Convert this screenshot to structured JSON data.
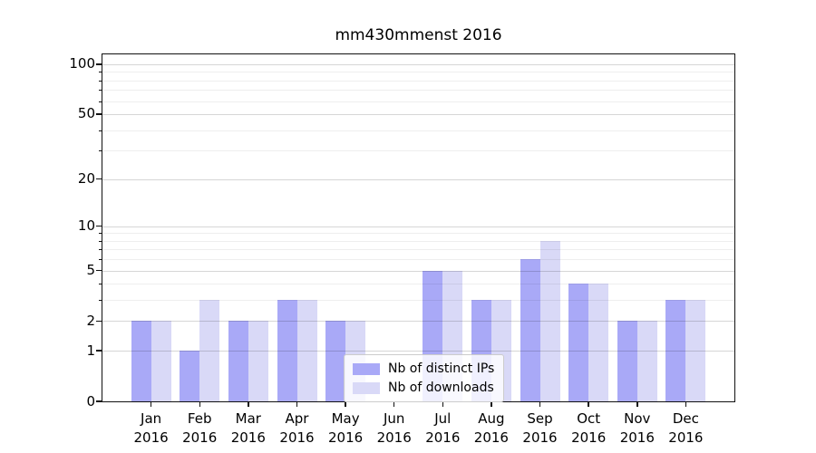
{
  "chart_data": {
    "type": "bar",
    "title": "mm430mmenst 2016",
    "categories": [
      "Jan 2016",
      "Feb 2016",
      "Mar 2016",
      "Apr 2016",
      "May 2016",
      "Jun 2016",
      "Jul 2016",
      "Aug 2016",
      "Sep 2016",
      "Oct 2016",
      "Nov 2016",
      "Dec 2016"
    ],
    "series": [
      {
        "name": "Nb of distinct IPs",
        "color": "#a9a9f7",
        "values": [
          2,
          1,
          2,
          3,
          2,
          0,
          5,
          3,
          6,
          4,
          2,
          3
        ]
      },
      {
        "name": "Nb of downloads",
        "color": "#d9d9f7",
        "values": [
          2,
          3,
          2,
          3,
          2,
          0,
          5,
          3,
          8,
          4,
          2,
          3
        ]
      }
    ],
    "y_axis": {
      "scale": "log10(v+1)",
      "ticks": [
        0,
        1,
        2,
        5,
        10,
        20,
        50,
        100
      ],
      "minor_ticks": [
        3,
        4,
        6,
        7,
        8,
        9,
        30,
        40,
        60,
        70,
        80,
        90
      ],
      "top_value": 114.5,
      "ylim": [
        0,
        114.5
      ]
    },
    "grid": true,
    "legend_position": "lower center"
  }
}
